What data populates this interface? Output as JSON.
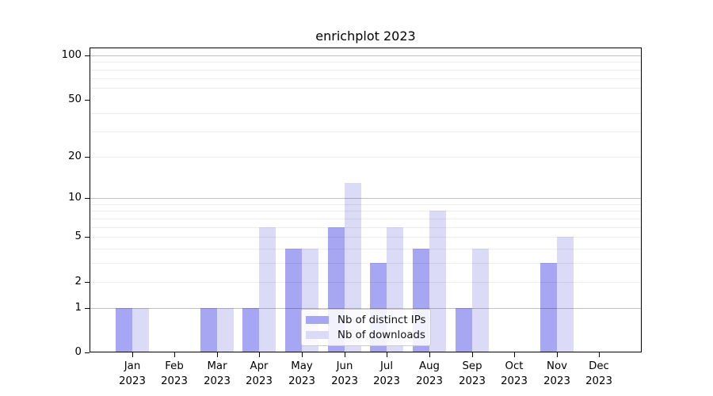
{
  "chart_data": {
    "type": "bar",
    "title": "enrichplot 2023",
    "categories": [
      "Jan",
      "Feb",
      "Mar",
      "Apr",
      "May",
      "Jun",
      "Jul",
      "Aug",
      "Sep",
      "Oct",
      "Nov",
      "Dec"
    ],
    "category_year": "2023",
    "series": [
      {
        "name": "Nb of distinct IPs",
        "color": "#a6a6f2",
        "values": [
          1,
          0,
          1,
          1,
          4,
          6,
          3,
          4,
          1,
          0,
          3,
          0
        ]
      },
      {
        "name": "Nb of downloads",
        "color": "#dbdbf7",
        "values": [
          1,
          0,
          1,
          6,
          4,
          13,
          6,
          8,
          4,
          0,
          5,
          0
        ]
      }
    ],
    "xlabel": "",
    "ylabel": "",
    "y_scale": "log1p",
    "ylim": [
      0,
      100
    ],
    "y_axis": {
      "tick_values": [
        0,
        1,
        2,
        5,
        10,
        20,
        50,
        100
      ],
      "tick_labels": [
        "0",
        "1",
        "2",
        "5",
        "10",
        "20",
        "50",
        "100"
      ],
      "major_gridlines": [
        1,
        10,
        100
      ],
      "minor_gridlines": [
        2,
        3,
        4,
        5,
        6,
        7,
        8,
        9,
        20,
        30,
        40,
        60,
        70,
        80,
        90
      ]
    },
    "grid": true,
    "legend_position": "inside lower-center",
    "colors": {
      "major_grid": "rgba(0,0,0,0.24)",
      "minor_grid": "rgba(0,0,0,0.07)",
      "spine": "#000000",
      "background": "#ffffff"
    }
  }
}
